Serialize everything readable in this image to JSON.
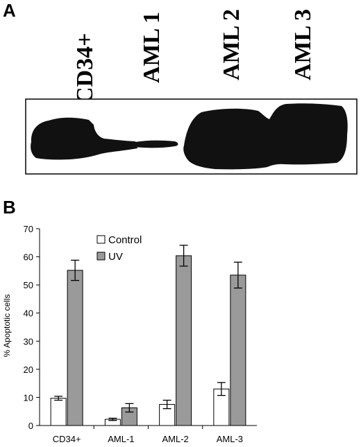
{
  "panel_a": {
    "label": "A",
    "lanes": [
      "CD34+",
      "AML 1",
      "AML 2",
      "AML 3"
    ]
  },
  "panel_b": {
    "label": "B"
  },
  "colors": {
    "control": "#ffffff",
    "uv": "#9a9a9a",
    "blot": "#111111",
    "axis": "#000000"
  },
  "chart_data": {
    "type": "bar",
    "categories": [
      "CD34+",
      "AML-1",
      "AML-2",
      "AML-3"
    ],
    "series": [
      {
        "name": "Control",
        "values": [
          9.7,
          2.2,
          7.5,
          13.0
        ],
        "errors": [
          0.7,
          0.4,
          1.5,
          2.3
        ]
      },
      {
        "name": "UV",
        "values": [
          55.2,
          6.3,
          60.4,
          53.5
        ],
        "errors": [
          3.6,
          1.5,
          3.7,
          4.6
        ]
      }
    ],
    "ylabel": "% Apoptotic cells",
    "xlabel": "",
    "ylim": [
      0,
      70
    ],
    "yticks": [
      0,
      10,
      20,
      30,
      40,
      50,
      60,
      70
    ],
    "grid": false,
    "legend": "top-left"
  }
}
